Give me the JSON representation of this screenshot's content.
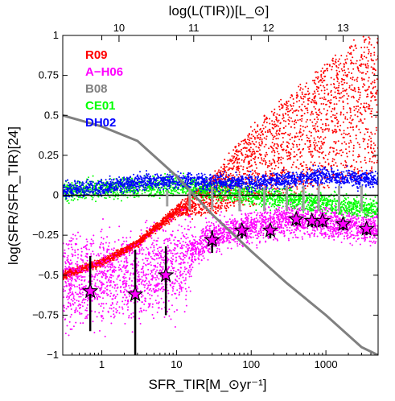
{
  "chart_data": {
    "type": "scatter",
    "title": "",
    "xlabel": "SFR_TIR[M_⊙yr⁻¹]",
    "ylabel": "log(SFR/SFR_TIR)[24]",
    "top_xlabel": "log(L(TIR))[L_⊙]",
    "x_scale": "log",
    "xlim": [
      0.3,
      5000
    ],
    "ylim": [
      -1,
      1
    ],
    "x_ticks": [
      1,
      10,
      100,
      1000
    ],
    "x_tick_labels": [
      "1",
      "10",
      "100",
      "1000"
    ],
    "y_ticks": [
      -1,
      -0.75,
      -0.5,
      -0.25,
      0,
      0.25,
      0.5,
      0.75,
      1
    ],
    "y_tick_labels": [
      "−1",
      "−0.75",
      "−0.5",
      "−0.25",
      "0",
      "0.25",
      "0.5",
      "0.75",
      "1"
    ],
    "top_ticks": [
      10,
      11,
      12,
      13
    ],
    "top_tick_labels": [
      "10",
      "11",
      "12",
      "13"
    ],
    "grid": false,
    "legend_position": "top-left",
    "series": [
      {
        "name": "R09",
        "color": "#ff0000",
        "kind": "scatter-cloud",
        "x": [
          0.3,
          1,
          3,
          10,
          20,
          30,
          50,
          100,
          300,
          1000,
          3000
        ],
        "y_upper": [
          -0.5,
          -0.42,
          -0.3,
          -0.08,
          0.05,
          0.12,
          0.25,
          0.42,
          0.62,
          0.82,
          1.0
        ],
        "y_lower": [
          -0.5,
          -0.42,
          -0.3,
          -0.12,
          -0.12,
          -0.12,
          -0.08,
          -0.05,
          0.0,
          0.05,
          0.1
        ]
      },
      {
        "name": "A−H06",
        "color": "#ff00ff",
        "kind": "scatter-cloud",
        "x": [
          0.3,
          1,
          3,
          10,
          30,
          100,
          300,
          1000,
          3000
        ],
        "y_center": [
          -0.55,
          -0.52,
          -0.5,
          -0.42,
          -0.25,
          -0.2,
          -0.15,
          -0.17,
          -0.2
        ]
      },
      {
        "name": "B08",
        "color": "#808080",
        "kind": "line",
        "x": [
          0.3,
          1,
          3,
          10,
          30,
          100,
          300,
          1000,
          3000,
          5000
        ],
        "y": [
          0.5,
          0.43,
          0.34,
          0.12,
          -0.12,
          -0.35,
          -0.55,
          -0.75,
          -0.95,
          -1.0
        ]
      },
      {
        "name": "CE01",
        "color": "#00ff00",
        "kind": "scatter-cloud",
        "x": [
          0.3,
          1,
          3,
          10,
          30,
          100,
          300,
          1000,
          3000
        ],
        "y_center": [
          0.03,
          0.04,
          0.05,
          0.06,
          0.03,
          0.0,
          -0.02,
          -0.05,
          -0.08
        ]
      },
      {
        "name": "DH02",
        "color": "#0000ff",
        "kind": "scatter-cloud",
        "x": [
          0.3,
          1,
          3,
          10,
          30,
          100,
          300,
          1000,
          3000
        ],
        "y_center": [
          0.03,
          0.05,
          0.08,
          0.09,
          0.08,
          0.08,
          0.1,
          0.12,
          0.1
        ]
      }
    ],
    "binned_points": {
      "marker": "star",
      "color": "#ff00ff",
      "x": [
        0.7,
        2.8,
        7.2,
        30,
        75,
        180,
        400,
        650,
        900,
        1700,
        3500
      ],
      "y": [
        -0.6,
        -0.62,
        -0.5,
        -0.28,
        -0.22,
        -0.22,
        -0.15,
        -0.16,
        -0.16,
        -0.18,
        -0.21
      ],
      "err_low": [
        0.25,
        0.45,
        0.25,
        0.08,
        0.05,
        0.05,
        0.04,
        0.04,
        0.04,
        0.04,
        0.04
      ],
      "err_high": [
        0.22,
        0.28,
        0.18,
        0.06,
        0.04,
        0.04,
        0.03,
        0.03,
        0.03,
        0.03,
        0.03
      ]
    },
    "gray_bars": {
      "x": [
        7.5,
        15,
        30,
        70,
        150,
        300,
        500,
        800,
        1500,
        3000
      ],
      "y_low": [
        -0.07,
        -0.09,
        -0.09,
        -0.1,
        -0.1,
        -0.1,
        -0.1,
        -0.1,
        -0.1,
        -0.1
      ],
      "y_high": [
        0.03,
        0.04,
        0.05,
        0.05,
        0.05,
        0.06,
        0.06,
        0.06,
        0.06,
        0.06
      ]
    }
  }
}
